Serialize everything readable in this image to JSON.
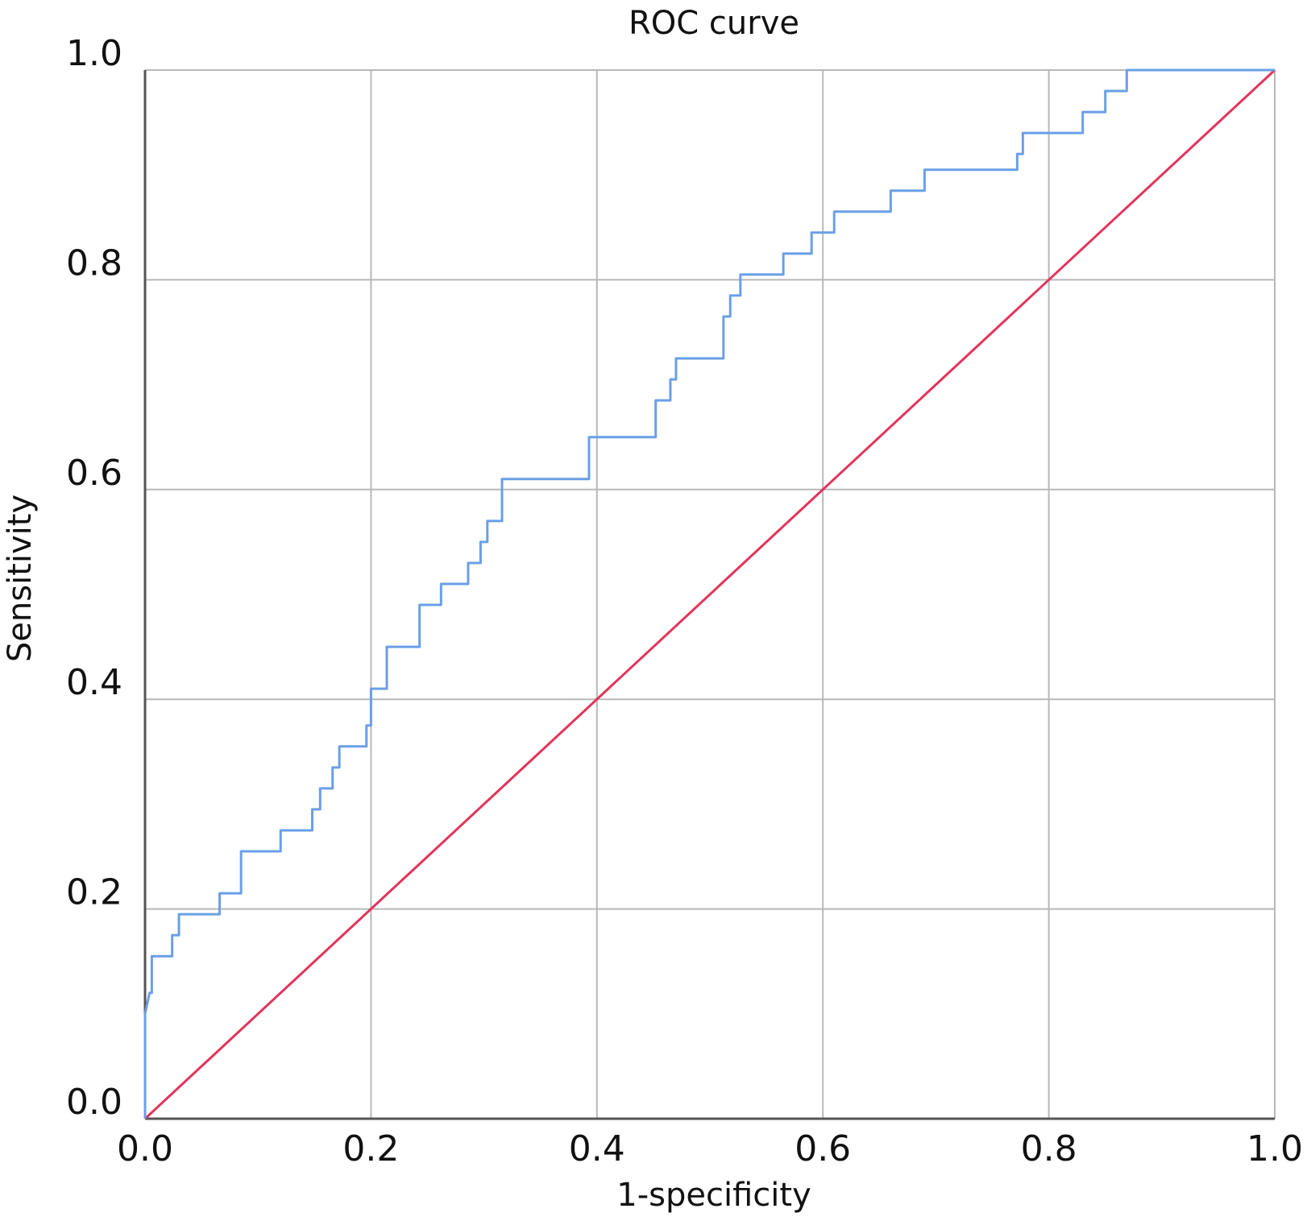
{
  "chart_data": {
    "type": "line",
    "title": "ROC curve",
    "xlabel": "1-specificity",
    "ylabel": "Sensitivity",
    "xlim": [
      0,
      1
    ],
    "ylim": [
      0,
      1
    ],
    "xticks": [
      "0.0",
      "0.2",
      "0.4",
      "0.6",
      "0.8",
      "1.0"
    ],
    "yticks": [
      "0.0",
      "0.2",
      "0.4",
      "0.6",
      "0.8",
      "1.0"
    ],
    "grid": true,
    "legend": "none",
    "colors": {
      "roc": "#6a9fe6",
      "reference": "#e2345a",
      "grid": "#b8b8b8",
      "axis": "#555555"
    },
    "series": [
      {
        "x": [
          0.0,
          0.0,
          0.004,
          0.006,
          0.006,
          0.024,
          0.024,
          0.03,
          0.03,
          0.066,
          0.066,
          0.085,
          0.085,
          0.12,
          0.12,
          0.148,
          0.148,
          0.155,
          0.155,
          0.166,
          0.166,
          0.172,
          0.172,
          0.196,
          0.196,
          0.2,
          0.2,
          0.214,
          0.214,
          0.243,
          0.243,
          0.262,
          0.262,
          0.286,
          0.286,
          0.297,
          0.297,
          0.303,
          0.303,
          0.316,
          0.316,
          0.393,
          0.393,
          0.452,
          0.452,
          0.465,
          0.465,
          0.47,
          0.47,
          0.512,
          0.512,
          0.518,
          0.518,
          0.527,
          0.527,
          0.565,
          0.565,
          0.59,
          0.59,
          0.61,
          0.61,
          0.66,
          0.66,
          0.69,
          0.69,
          0.772,
          0.772,
          0.777,
          0.777,
          0.83,
          0.83,
          0.85,
          0.85,
          0.869,
          0.869,
          1.0
        ],
        "y": [
          0.0,
          0.1,
          0.12,
          0.12,
          0.155,
          0.155,
          0.175,
          0.175,
          0.195,
          0.195,
          0.215,
          0.215,
          0.255,
          0.255,
          0.275,
          0.275,
          0.295,
          0.295,
          0.315,
          0.315,
          0.335,
          0.335,
          0.355,
          0.355,
          0.375,
          0.375,
          0.41,
          0.41,
          0.45,
          0.45,
          0.49,
          0.49,
          0.51,
          0.51,
          0.53,
          0.53,
          0.55,
          0.55,
          0.57,
          0.57,
          0.61,
          0.61,
          0.65,
          0.65,
          0.685,
          0.685,
          0.705,
          0.705,
          0.725,
          0.725,
          0.765,
          0.765,
          0.785,
          0.785,
          0.805,
          0.805,
          0.825,
          0.825,
          0.845,
          0.845,
          0.865,
          0.865,
          0.885,
          0.885,
          0.905,
          0.905,
          0.92,
          0.92,
          0.94,
          0.94,
          0.96,
          0.96,
          0.98,
          0.98,
          1.0,
          1.0
        ]
      },
      {
        "x": [
          0.0,
          1.0
        ],
        "y": [
          0.0,
          1.0
        ]
      }
    ]
  }
}
